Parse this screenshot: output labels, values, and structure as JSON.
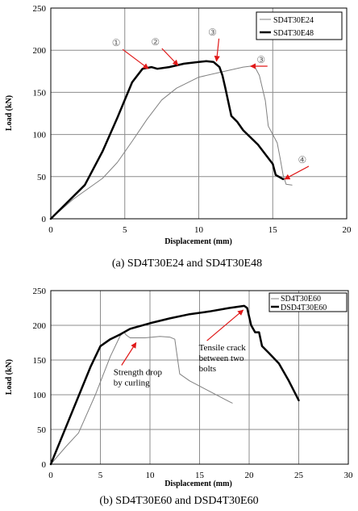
{
  "chart_data": [
    {
      "type": "line",
      "caption": "(a)  SD4T30E24  and  SD4T30E48",
      "xlabel": "Displacement (mm)",
      "ylabel": "Load (kN)",
      "xlim": [
        0,
        20
      ],
      "ylim": [
        0,
        250
      ],
      "xticks": [
        0,
        5,
        10,
        15,
        20
      ],
      "yticks": [
        0,
        50,
        100,
        150,
        200,
        250
      ],
      "grid": true,
      "legend_position": "top-right",
      "series": [
        {
          "name": "SD4T30E24",
          "style": "thin",
          "color": "#808080",
          "x": [
            0,
            1.5,
            3.5,
            4.5,
            5.5,
            6.5,
            7.5,
            8.5,
            10,
            12,
            13.0,
            13.5,
            13.8,
            14.1,
            14.5,
            14.7,
            15.0,
            15.3,
            15.5,
            15.7,
            15.9,
            16.3
          ],
          "y": [
            0,
            23,
            48,
            67,
            92,
            118,
            141,
            155,
            168,
            176,
            180,
            181,
            180,
            170,
            140,
            110,
            100,
            90,
            72,
            52,
            41,
            40
          ]
        },
        {
          "name": "SD4T30E48",
          "style": "thick",
          "color": "#000000",
          "x": [
            0,
            2.3,
            3.5,
            4.5,
            5.5,
            6.2,
            6.8,
            7.2,
            8,
            9,
            10,
            10.5,
            11.0,
            11.4,
            11.6,
            11.8,
            12.2,
            12.6,
            13,
            14,
            15,
            15.2,
            15.7
          ],
          "y": [
            0,
            40,
            80,
            120,
            162,
            178,
            180,
            178,
            180,
            184,
            186,
            187,
            186,
            180,
            170,
            155,
            122,
            115,
            105,
            88,
            65,
            52,
            47
          ]
        }
      ],
      "annotations": [
        {
          "label": "①",
          "target": [
            6.6,
            178
          ]
        },
        {
          "label": "②",
          "target": [
            8.6,
            182
          ]
        },
        {
          "label": "③",
          "target": [
            11.2,
            187
          ]
        },
        {
          "label": "③",
          "target": [
            13.5,
            181
          ]
        },
        {
          "label": "④",
          "target": [
            15.8,
            47
          ]
        }
      ]
    },
    {
      "type": "line",
      "caption": "(b) SD4T30E60 and DSD4T30E60",
      "xlabel": "Displacement (mm)",
      "ylabel": "Load (kN)",
      "xlim": [
        0,
        30
      ],
      "ylim": [
        0,
        250
      ],
      "xticks": [
        0,
        5,
        10,
        15,
        20,
        25,
        30
      ],
      "yticks": [
        0,
        50,
        100,
        150,
        200,
        250
      ],
      "grid": true,
      "legend_position": "top-right",
      "series": [
        {
          "name": "SD4T30E60",
          "style": "thin",
          "color": "#808080",
          "x": [
            0,
            1.5,
            2.8,
            4.5,
            6,
            7.0,
            7.4,
            7.6,
            8.0,
            9.5,
            11,
            12.0,
            12.5,
            12.7,
            13.0,
            14,
            16,
            18,
            18.3
          ],
          "y": [
            0,
            25,
            45,
            100,
            155,
            185,
            190,
            186,
            182,
            182,
            184,
            183,
            180,
            160,
            130,
            120,
            105,
            90,
            88
          ]
        },
        {
          "name": "DSD4T30E60",
          "style": "thick",
          "color": "#000000",
          "x": [
            0,
            2,
            4,
            5,
            6,
            7,
            8,
            10,
            12,
            14,
            16,
            18,
            19.5,
            19.8,
            20.2,
            20.6,
            21.0,
            21.3,
            22,
            23,
            24,
            25
          ],
          "y": [
            0,
            70,
            140,
            170,
            180,
            187,
            195,
            203,
            210,
            216,
            220,
            225,
            228,
            225,
            200,
            190,
            190,
            170,
            160,
            145,
            120,
            92
          ]
        }
      ],
      "annotations": [
        {
          "label": "Strength   drop by curling",
          "target": [
            8.6,
            175
          ]
        },
        {
          "label": "Tensile crack between     two bolts",
          "target": [
            19.4,
            222
          ]
        }
      ]
    }
  ]
}
